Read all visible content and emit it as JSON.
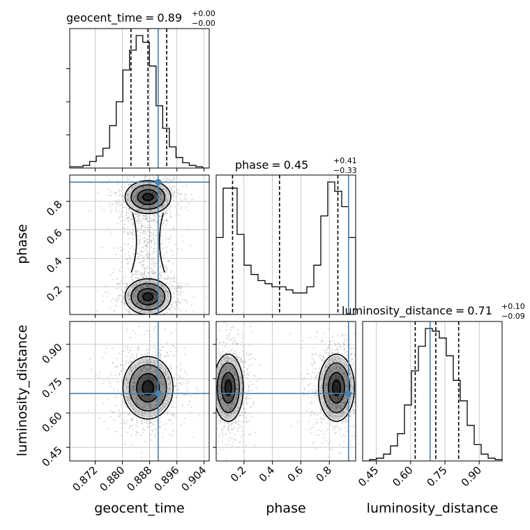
{
  "params": [
    "geocent_time",
    "phase",
    "luminosity_distance"
  ],
  "titles": [
    {
      "name": "geocent_time",
      "median": "0.89",
      "plus": "+0.00",
      "minus": "−0.00"
    },
    {
      "name": "phase",
      "median": "0.45",
      "plus": "+0.41",
      "minus": "−0.33"
    },
    {
      "name": "luminosity_distance",
      "median": "0.71",
      "plus": "+0.10",
      "minus": "−0.09"
    }
  ],
  "truth_color": "#4682b4",
  "chart_data": {
    "type": "corner",
    "parameters": [
      "geocent_time",
      "phase",
      "luminosity_distance"
    ],
    "ranges": {
      "geocent_time": [
        0.8645,
        0.9055
      ],
      "phase": [
        0.005,
        0.985
      ],
      "luminosity_distance": [
        0.39,
        1.0
      ]
    },
    "ticks": {
      "geocent_time": [
        0.872,
        0.88,
        0.888,
        0.896,
        0.904
      ],
      "phase": [
        0.2,
        0.4,
        0.6,
        0.8
      ],
      "luminosity_distance": [
        0.45,
        0.6,
        0.75,
        0.9
      ]
    },
    "tick_labels": {
      "geocent_time": [
        "0.872",
        "0.880",
        "0.888",
        "0.896",
        "0.904"
      ],
      "phase": [
        "0.2",
        "0.4",
        "0.6",
        "0.8"
      ],
      "luminosity_distance": [
        "0.45",
        "0.60",
        "0.75",
        "0.90"
      ]
    },
    "truths": {
      "geocent_time": 0.8905,
      "phase": 0.935,
      "luminosity_distance": 0.685
    },
    "quantiles": {
      "geocent_time": [
        0.8825,
        0.8875,
        0.893
      ],
      "phase": [
        0.12,
        0.45,
        0.86
      ],
      "luminosity_distance": [
        0.62,
        0.71,
        0.81
      ]
    },
    "histograms": {
      "geocent_time": [
        1,
        1,
        2,
        5,
        9,
        15,
        32,
        50,
        74,
        89,
        100,
        95,
        77,
        47,
        30,
        16,
        8,
        4,
        2,
        1,
        0
      ],
      "phase": [
        25,
        41,
        41,
        26,
        16,
        13,
        11,
        10,
        9,
        9,
        8,
        7,
        7,
        9,
        16,
        32,
        43,
        40,
        35,
        25
      ],
      "luminosity_distance": [
        0,
        1,
        2,
        5,
        11,
        20,
        41,
        66,
        84,
        97,
        95,
        90,
        77,
        59,
        44,
        26,
        12,
        5,
        2,
        1
      ]
    },
    "densities": {
      "phase_vs_geocent_time": [
        {
          "x": 0.8875,
          "y": 0.83,
          "sx": 0.0032,
          "sy": 0.055,
          "w": 1.0
        },
        {
          "x": 0.8875,
          "y": 0.13,
          "sx": 0.0032,
          "sy": 0.06,
          "w": 1.0
        }
      ],
      "luminosity_distance_vs_geocent_time": [
        {
          "x": 0.8875,
          "y": 0.71,
          "sx": 0.0035,
          "sy": 0.065,
          "w": 1.0
        }
      ],
      "luminosity_distance_vs_phase": [
        {
          "x": 0.09,
          "y": 0.71,
          "sx": 0.05,
          "sy": 0.07,
          "w": 1.0
        },
        {
          "x": 0.85,
          "y": 0.71,
          "sx": 0.06,
          "sy": 0.07,
          "w": 1.0
        }
      ]
    },
    "grid": true
  }
}
